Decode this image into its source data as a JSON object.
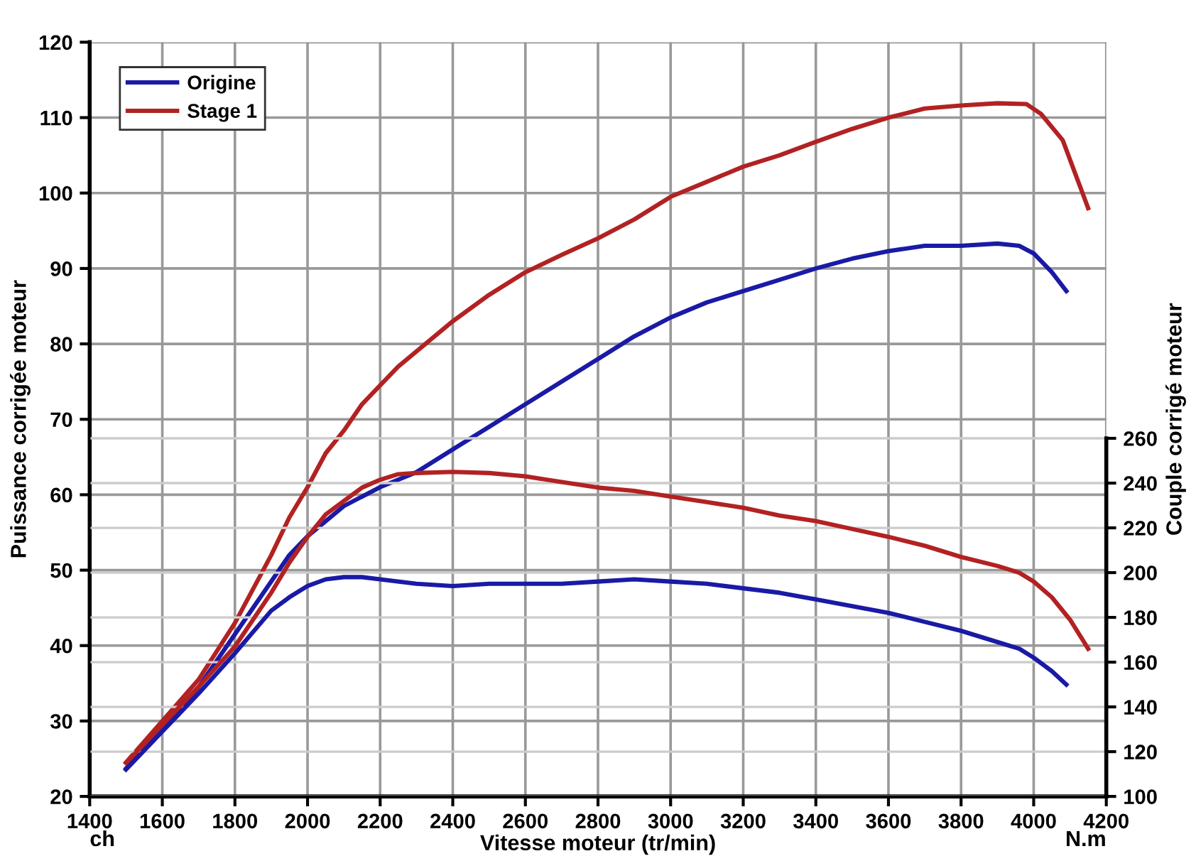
{
  "chart_data": {
    "type": "line",
    "xlabel": "Vitesse moteur (tr/min)",
    "ylabel": "Puissance corrigée moteur",
    "y2label": "Couple corrigé moteur",
    "annotations": [
      "ch",
      "N.m"
    ],
    "xlim": [
      1400,
      4200
    ],
    "xticks": [
      1400,
      1600,
      1800,
      2000,
      2200,
      2400,
      2600,
      2800,
      3000,
      3200,
      3400,
      3600,
      3800,
      4000,
      4200
    ],
    "ylim": [
      20,
      120
    ],
    "yticks": [
      20,
      30,
      40,
      50,
      60,
      70,
      80,
      90,
      100,
      110,
      120
    ],
    "y2lim": [
      100,
      437
    ],
    "y2ticks": [
      100,
      120,
      140,
      160,
      180,
      200,
      220,
      240,
      260
    ],
    "grid": true,
    "legend": "top left",
    "line_style": "solid",
    "marker": "none",
    "series": [
      {
        "name": "Origine",
        "color": "#1a1aa6",
        "x": [
          1500,
          1600,
          1700,
          1800,
          1900,
          1950,
          2000,
          2100,
          2200,
          2300,
          2400,
          2500,
          2600,
          2700,
          2800,
          2900,
          3000,
          3100,
          3200,
          3300,
          3400,
          3500,
          3600,
          3700,
          3800,
          3900,
          3960,
          4000,
          4050,
          4090
        ],
        "values": [
          23.7,
          29,
          34.5,
          41.5,
          48.5,
          52,
          54.5,
          58.5,
          61,
          63,
          66,
          69,
          72,
          75,
          78,
          81,
          83.5,
          85.5,
          87,
          88.5,
          90,
          91.3,
          92.3,
          93,
          93,
          93.3,
          93,
          92,
          89.5,
          87
        ]
      },
      {
        "name": "Stage 1",
        "color": "#b22222",
        "x": [
          1500,
          1600,
          1700,
          1800,
          1900,
          1950,
          2000,
          2050,
          2100,
          2150,
          2200,
          2250,
          2300,
          2400,
          2500,
          2600,
          2700,
          2800,
          2900,
          3000,
          3100,
          3200,
          3300,
          3400,
          3500,
          3600,
          3700,
          3800,
          3900,
          3980,
          4020,
          4080,
          4150
        ],
        "values": [
          24.5,
          30,
          35.5,
          43,
          52,
          57,
          61,
          65.5,
          68.5,
          72,
          74.5,
          77,
          79,
          83,
          86.5,
          89.5,
          91.8,
          94,
          96.5,
          99.5,
          101.5,
          103.5,
          105,
          106.8,
          108.5,
          110,
          111.2,
          111.6,
          111.9,
          111.8,
          110.5,
          107,
          98
        ]
      },
      {
        "color": "#1a1aa6",
        "axis": "y2",
        "x": [
          1500,
          1600,
          1700,
          1800,
          1900,
          1950,
          2000,
          2050,
          2100,
          2150,
          2200,
          2300,
          2400,
          2500,
          2600,
          2700,
          2800,
          2900,
          3000,
          3100,
          3200,
          3300,
          3400,
          3500,
          3600,
          3700,
          3800,
          3900,
          3960,
          4000,
          4050,
          4090
        ],
        "values": [
          112,
          129,
          146,
          164,
          183,
          189,
          194,
          197,
          198,
          198,
          197,
          195,
          194,
          195,
          195,
          195,
          196,
          197,
          196,
          195,
          193,
          191,
          188,
          185,
          182,
          178,
          174,
          169,
          166,
          162,
          156,
          150
        ]
      },
      {
        "color": "#b22222",
        "axis": "y2",
        "x": [
          1500,
          1600,
          1700,
          1800,
          1900,
          1950,
          2000,
          2050,
          2100,
          2150,
          2200,
          2250,
          2300,
          2400,
          2500,
          2600,
          2700,
          2800,
          2900,
          3000,
          3100,
          3200,
          3300,
          3400,
          3500,
          3600,
          3700,
          3800,
          3900,
          3960,
          4000,
          4050,
          4100,
          4150
        ],
        "values": [
          115,
          132,
          149,
          167,
          191,
          204.5,
          216,
          226,
          232,
          238,
          241.5,
          244,
          244.5,
          245,
          244.5,
          243,
          240.5,
          238,
          236.5,
          234,
          231.5,
          229,
          225.5,
          223,
          219.5,
          216,
          212,
          207,
          203,
          200,
          196,
          189,
          179,
          166
        ]
      }
    ]
  }
}
